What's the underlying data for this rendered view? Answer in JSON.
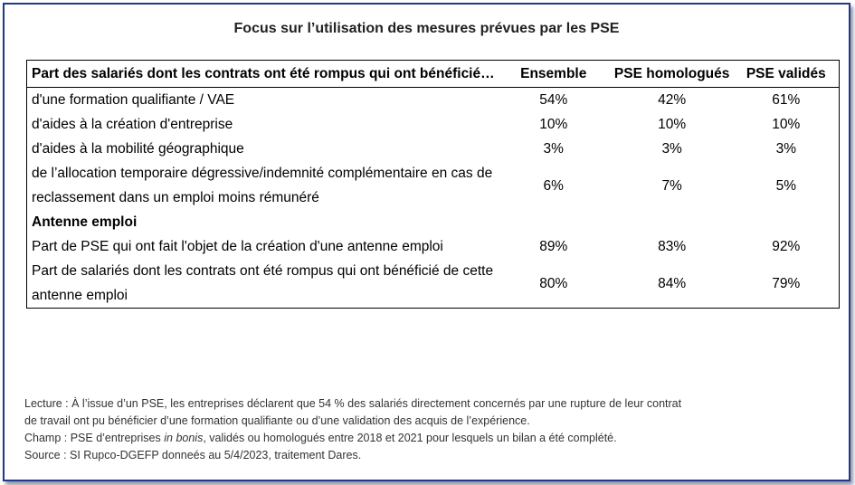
{
  "title": "Focus sur l’utilisation des mesures prévues par les PSE",
  "table": {
    "header": {
      "label": "Part des salariés dont les contrats ont été rompus qui ont bénéficié…",
      "col1": "Ensemble",
      "col2": "PSE homologués",
      "col3": "PSE validés"
    },
    "rows": [
      {
        "label": "d'une formation qualifiante / VAE",
        "ensemble": "54%",
        "homologues": "42%",
        "valides": "61%"
      },
      {
        "label": "d'aides à la création d'entreprise",
        "ensemble": "10%",
        "homologues": "10%",
        "valides": "10%"
      },
      {
        "label": "d'aides à la mobilité géographique",
        "ensemble": "3%",
        "homologues": "3%",
        "valides": "3%"
      },
      {
        "label": "de l’allocation temporaire dégressive/indemnité complémentaire en cas de reclassement dans un emploi moins rémunéré",
        "ensemble": "6%",
        "homologues": "7%",
        "valides": "5%"
      }
    ],
    "section": "Antenne emploi",
    "section_rows": [
      {
        "label": "Part de PSE qui ont fait l'objet de la création d'une antenne emploi",
        "ensemble": "89%",
        "homologues": "83%",
        "valides": "92%"
      },
      {
        "label": "Part de salariés dont les contrats ont été rompus qui ont bénéficié de cette antenne emploi",
        "ensemble": "80%",
        "homologues": "84%",
        "valides": "79%"
      }
    ]
  },
  "notes": {
    "lecture_1": "Lecture : À l’issue d’un PSE, les entreprises déclarent que 54 % des salariés directement concernés par une rupture de leur contrat",
    "lecture_2": "de travail ont pu bénéficier d’une formation qualifiante ou d’une validation des acquis de l’expérience.",
    "champ_prefix": "Champ : PSE d’entreprises ",
    "champ_italic": "in bonis",
    "champ_suffix": ", validés ou homologués entre 2018 et 2021 pour lesquels un bilan a été complété.",
    "source": "Source : SI Rupco-DGEFP donneés au 5/4/2023, traitement Dares."
  }
}
